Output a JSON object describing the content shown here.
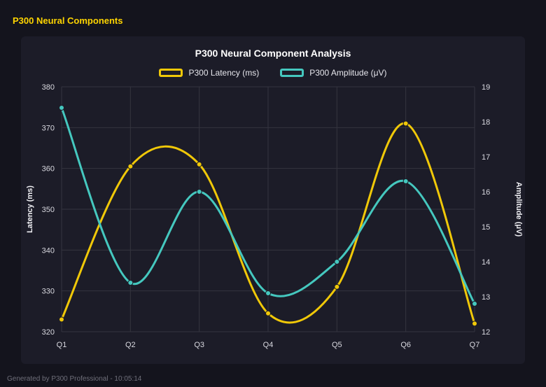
{
  "header": {
    "title": "P300 Neural Components"
  },
  "footer": {
    "note": "Generated by P300 Professional - 10:05:14"
  },
  "theme": {
    "page_bg": "#14141d",
    "card_bg": "#1c1c28",
    "grid_color": "#34343f",
    "tick_text_color": "#d9d9e0",
    "axis_title_color": "#f0f0f4",
    "title_color": "#ffffff",
    "header_color": "#ffd500",
    "muted_text": "#6f6f7a",
    "latency_color": "#f0c808",
    "amplitude_color": "#45c8bf"
  },
  "chart_data": {
    "type": "line",
    "title": "P300 Neural Component Analysis",
    "categories": [
      "Q1",
      "Q2",
      "Q3",
      "Q4",
      "Q5",
      "Q6",
      "Q7"
    ],
    "series": [
      {
        "name": "P300 Latency (ms)",
        "axis": "left",
        "color": "#f0c808",
        "values": [
          323,
          360.5,
          361,
          324.5,
          331,
          371,
          322
        ]
      },
      {
        "name": "P300 Amplitude (μV)",
        "axis": "right",
        "color": "#45c8bf",
        "values": [
          18.4,
          13.4,
          16.0,
          13.1,
          14.0,
          16.3,
          12.8
        ]
      }
    ],
    "left_axis": {
      "label": "Latency (ms)",
      "min": 320,
      "max": 380,
      "ticks": [
        320,
        330,
        340,
        350,
        360,
        370,
        380
      ]
    },
    "right_axis": {
      "label": "Amplitude (μV)",
      "min": 12,
      "max": 19,
      "ticks": [
        12,
        13,
        14,
        15,
        16,
        17,
        18,
        19
      ]
    },
    "grid": true,
    "smooth": true,
    "legend_position": "top"
  }
}
